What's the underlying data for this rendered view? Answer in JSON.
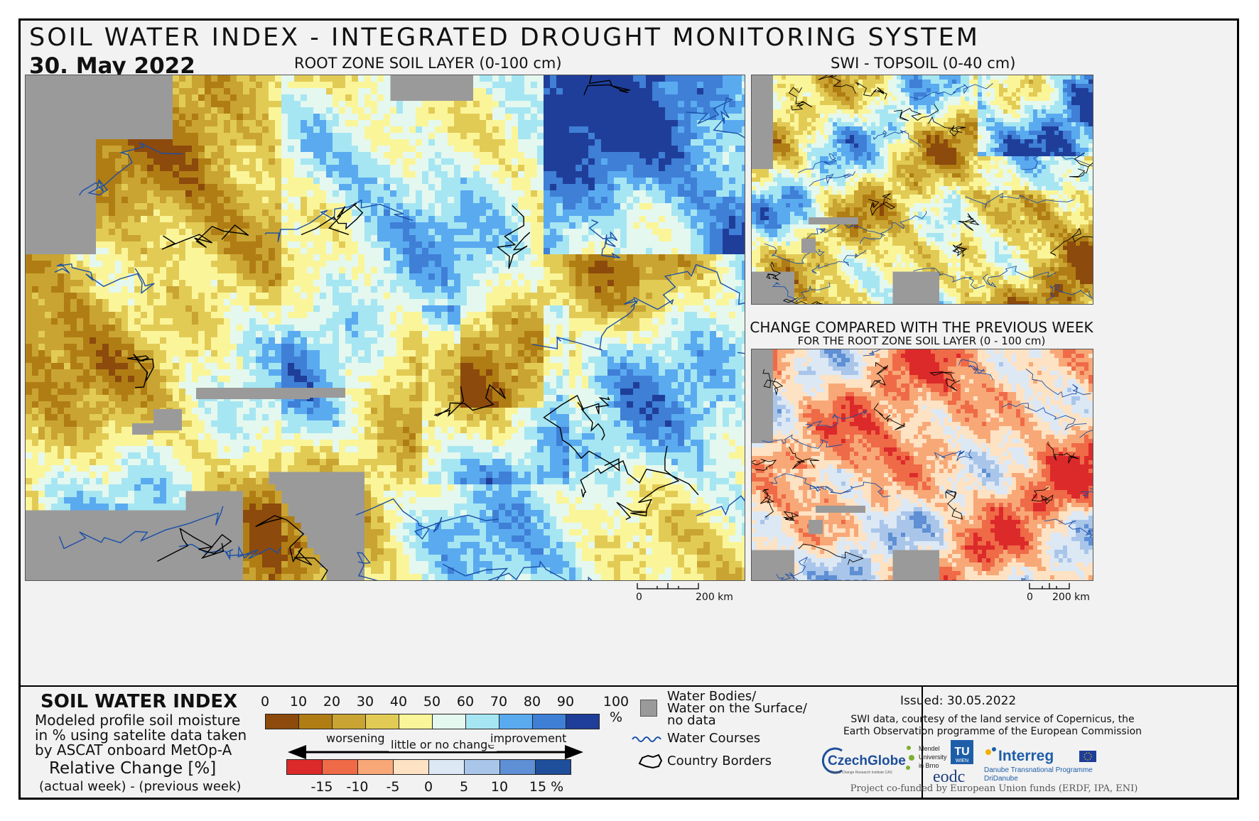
{
  "header": {
    "title": "SOIL WATER INDEX - INTEGRATED DROUGHT MONITORING SYSTEM",
    "date": "30. May 2022"
  },
  "maps": {
    "main": {
      "label": "ROOT ZONE SOIL LAYER (0-100 cm)"
    },
    "topsoil": {
      "label": "SWI - TOPSOIL (0-40 cm)"
    },
    "change": {
      "label": "CHANGE COMPARED WITH THE PREVIOUS WEEK",
      "sublabel": "FOR THE ROOT ZONE SOIL LAYER (0 - 100 cm)"
    },
    "scale_main": {
      "start": "0",
      "end": "200 km"
    },
    "scale_small": {
      "start": "0",
      "end": "200 km"
    }
  },
  "legend": {
    "title": "SOIL WATER INDEX",
    "description_lines": [
      "Modeled profile soil moisture",
      "in % using satelite data taken",
      "by ASCAT onboard MetOp-A"
    ],
    "change_title": "Relative Change [%]",
    "change_desc": "(actual week) - (previous week)",
    "swi_ticks": [
      "0",
      "10",
      "20",
      "30",
      "40",
      "50",
      "60",
      "70",
      "80",
      "90",
      "100 %"
    ],
    "swi_colors": [
      "#8c4a0c",
      "#b07d14",
      "#c9a432",
      "#e2cb55",
      "#fbf59a",
      "#e4f8ef",
      "#a6e6f2",
      "#5aaaf0",
      "#3f7fd6",
      "#1f3e9a"
    ],
    "change_ticks": [
      "-15",
      "-10",
      "-5",
      "0",
      "5",
      "10",
      "15 %"
    ],
    "change_colors": [
      "#dc2a2a",
      "#ef6a47",
      "#f8a877",
      "#fde2c3",
      "#dde8f5",
      "#a9c6ea",
      "#5f8fd4",
      "#1f4e9a"
    ],
    "worsening": "worsening",
    "little": "little or no change",
    "improvement": "improvement",
    "symbols": {
      "water_bodies": [
        "Water Bodies/",
        "Water on the Surface/",
        "no data"
      ],
      "water_courses": "Water Courses",
      "country_borders": "Country Borders"
    }
  },
  "credits": {
    "issued": "Issued: 30.05.2022",
    "source_lines": [
      "SWI data, courtesy of the land service of Copernicus, the",
      "Earth Observation programme of the European Commission"
    ],
    "logos": {
      "czechglobe": "CzechGlobe",
      "czechglobe_sub": "Global Change Research Institute CAS",
      "mendel": [
        "Mendel",
        "University",
        "in Brno"
      ],
      "tu": "TU",
      "tu_sub": "WIEN",
      "eodc": "eodc",
      "interreg": "Interreg",
      "interreg_sub1": "Danube Transnational Programme",
      "interreg_sub2": "DriDanube"
    },
    "funding": "Project co-funded by European Union funds (ERDF, IPA, ENI)"
  },
  "colors": {
    "nodata": "#9a9a9a",
    "river": "#1a4fa8",
    "border": "#000000"
  }
}
